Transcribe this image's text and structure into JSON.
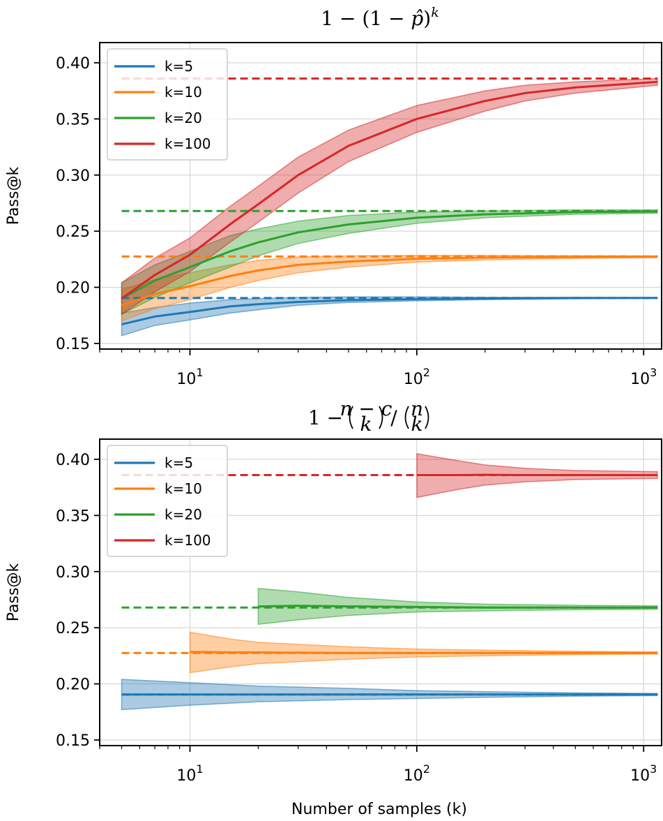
{
  "chart_data": [
    {
      "type": "line",
      "title": "1 − (1 − p̂)ᵏ",
      "title_parts": {
        "a": "1 − (1 − ",
        "b": "p̂",
        "c": ")",
        "sup": "k"
      },
      "xlabel": "",
      "ylabel": "Pass@k",
      "xscale": "log",
      "xlim": [
        4,
        1200
      ],
      "ylim": [
        0.145,
        0.418
      ],
      "x_ticks": [
        {
          "v": 10,
          "base": "10",
          "exp": "1"
        },
        {
          "v": 100,
          "base": "10",
          "exp": "2"
        },
        {
          "v": 1000,
          "base": "10",
          "exp": "3"
        }
      ],
      "y_ticks": [
        {
          "v": 0.15,
          "label": "0.15"
        },
        {
          "v": 0.2,
          "label": "0.20"
        },
        {
          "v": 0.25,
          "label": "0.25"
        },
        {
          "v": 0.3,
          "label": "0.30"
        },
        {
          "v": 0.35,
          "label": "0.35"
        },
        {
          "v": 0.4,
          "label": "0.40"
        }
      ],
      "grid": true,
      "legend_position": "top-left",
      "series": [
        {
          "name": "k=5",
          "color": "#1f77b4",
          "reference": 0.1905,
          "ref_xrange": [
            5,
            1150
          ],
          "x": [
            5,
            7,
            10,
            15,
            20,
            30,
            50,
            100,
            200,
            500,
            1150
          ],
          "mean": [
            0.167,
            0.174,
            0.178,
            0.183,
            0.185,
            0.187,
            0.1885,
            0.1895,
            0.19,
            0.1905,
            0.1905
          ],
          "lower": [
            0.157,
            0.166,
            0.171,
            0.177,
            0.18,
            0.184,
            0.1865,
            0.188,
            0.189,
            0.1898,
            0.1902
          ],
          "upper": [
            0.177,
            0.182,
            0.186,
            0.189,
            0.19,
            0.191,
            0.1915,
            0.1915,
            0.1912,
            0.191,
            0.1908
          ]
        },
        {
          "name": "k=10",
          "color": "#ff7f0e",
          "reference": 0.2275,
          "ref_xrange": [
            5,
            1150
          ],
          "x": [
            5,
            7,
            10,
            15,
            20,
            30,
            50,
            100,
            200,
            500,
            1150
          ],
          "mean": [
            0.184,
            0.194,
            0.201,
            0.21,
            0.215,
            0.22,
            0.223,
            0.2255,
            0.2265,
            0.227,
            0.2272
          ],
          "lower": [
            0.17,
            0.181,
            0.189,
            0.2,
            0.206,
            0.213,
            0.218,
            0.2225,
            0.2245,
            0.2258,
            0.2264
          ],
          "upper": [
            0.198,
            0.207,
            0.213,
            0.22,
            0.224,
            0.227,
            0.228,
            0.2285,
            0.2285,
            0.2282,
            0.228
          ]
        },
        {
          "name": "k=20",
          "color": "#2ca02c",
          "reference": 0.268,
          "ref_xrange": [
            5,
            1150
          ],
          "x": [
            5,
            7,
            10,
            15,
            20,
            30,
            50,
            100,
            200,
            500,
            1150
          ],
          "mean": [
            0.19,
            0.206,
            0.218,
            0.232,
            0.24,
            0.249,
            0.256,
            0.262,
            0.265,
            0.267,
            0.2675
          ],
          "lower": [
            0.176,
            0.191,
            0.204,
            0.218,
            0.228,
            0.239,
            0.248,
            0.257,
            0.262,
            0.265,
            0.266
          ],
          "upper": [
            0.204,
            0.22,
            0.232,
            0.246,
            0.252,
            0.259,
            0.264,
            0.267,
            0.268,
            0.269,
            0.269
          ]
        },
        {
          "name": "k=100",
          "color": "#d62728",
          "reference": 0.386,
          "ref_xrange": [
            5,
            1150
          ],
          "x": [
            5,
            7,
            10,
            15,
            20,
            30,
            50,
            100,
            200,
            300,
            500,
            1150
          ],
          "mean": [
            0.19,
            0.211,
            0.229,
            0.256,
            0.274,
            0.3,
            0.326,
            0.35,
            0.366,
            0.373,
            0.378,
            0.383
          ],
          "lower": [
            0.176,
            0.196,
            0.214,
            0.24,
            0.258,
            0.284,
            0.312,
            0.338,
            0.357,
            0.366,
            0.373,
            0.38
          ],
          "upper": [
            0.204,
            0.226,
            0.244,
            0.272,
            0.29,
            0.316,
            0.34,
            0.362,
            0.375,
            0.38,
            0.383,
            0.386
          ]
        }
      ]
    },
    {
      "type": "line",
      "title": "1 − (n−c choose k) / (n choose k)",
      "title_parts": {
        "a": "1 − ",
        "b": "/",
        "top1": "n − c",
        "bot1": "k",
        "top2": "n",
        "bot2": "k"
      },
      "xlabel": "Number of samples (k)",
      "ylabel": "Pass@k",
      "xscale": "log",
      "xlim": [
        4,
        1200
      ],
      "ylim": [
        0.145,
        0.418
      ],
      "x_ticks": [
        {
          "v": 10,
          "base": "10",
          "exp": "1"
        },
        {
          "v": 100,
          "base": "10",
          "exp": "2"
        },
        {
          "v": 1000,
          "base": "10",
          "exp": "3"
        }
      ],
      "y_ticks": [
        {
          "v": 0.15,
          "label": "0.15"
        },
        {
          "v": 0.2,
          "label": "0.20"
        },
        {
          "v": 0.25,
          "label": "0.25"
        },
        {
          "v": 0.3,
          "label": "0.30"
        },
        {
          "v": 0.35,
          "label": "0.35"
        },
        {
          "v": 0.4,
          "label": "0.40"
        }
      ],
      "grid": true,
      "legend_position": "top-left",
      "series": [
        {
          "name": "k=5",
          "color": "#1f77b4",
          "reference": 0.1905,
          "ref_xrange": [
            5,
            1150
          ],
          "x": [
            5,
            10,
            20,
            50,
            100,
            200,
            500,
            1150
          ],
          "mean": [
            0.1905,
            0.1905,
            0.1905,
            0.1905,
            0.1905,
            0.1905,
            0.1905,
            0.1905
          ],
          "lower": [
            0.177,
            0.181,
            0.184,
            0.186,
            0.187,
            0.188,
            0.189,
            0.1895
          ],
          "upper": [
            0.204,
            0.201,
            0.198,
            0.196,
            0.194,
            0.193,
            0.192,
            0.1915
          ]
        },
        {
          "name": "k=10",
          "color": "#ff7f0e",
          "reference": 0.2275,
          "ref_xrange": [
            5,
            1150
          ],
          "x": [
            10,
            15,
            20,
            50,
            100,
            200,
            500,
            1150
          ],
          "mean": [
            0.2285,
            0.228,
            0.228,
            0.2275,
            0.2275,
            0.2275,
            0.2275,
            0.2275
          ],
          "lower": [
            0.21,
            0.215,
            0.218,
            0.222,
            0.224,
            0.225,
            0.226,
            0.2265
          ],
          "upper": [
            0.246,
            0.24,
            0.237,
            0.233,
            0.231,
            0.23,
            0.229,
            0.2285
          ]
        },
        {
          "name": "k=20",
          "color": "#2ca02c",
          "reference": 0.268,
          "ref_xrange": [
            5,
            1150
          ],
          "x": [
            20,
            30,
            50,
            100,
            200,
            500,
            1150
          ],
          "mean": [
            0.269,
            0.2695,
            0.269,
            0.2685,
            0.268,
            0.268,
            0.268
          ],
          "lower": [
            0.253,
            0.257,
            0.261,
            0.264,
            0.265,
            0.266,
            0.2665
          ],
          "upper": [
            0.285,
            0.282,
            0.277,
            0.273,
            0.271,
            0.27,
            0.2695
          ]
        },
        {
          "name": "k=100",
          "color": "#d62728",
          "reference": 0.386,
          "ref_xrange": [
            5,
            1150
          ],
          "x": [
            100,
            150,
            200,
            300,
            500,
            1150
          ],
          "mean": [
            0.386,
            0.386,
            0.3862,
            0.386,
            0.386,
            0.386
          ],
          "lower": [
            0.366,
            0.373,
            0.377,
            0.38,
            0.382,
            0.383
          ],
          "upper": [
            0.405,
            0.399,
            0.395,
            0.392,
            0.39,
            0.389
          ]
        }
      ]
    }
  ]
}
